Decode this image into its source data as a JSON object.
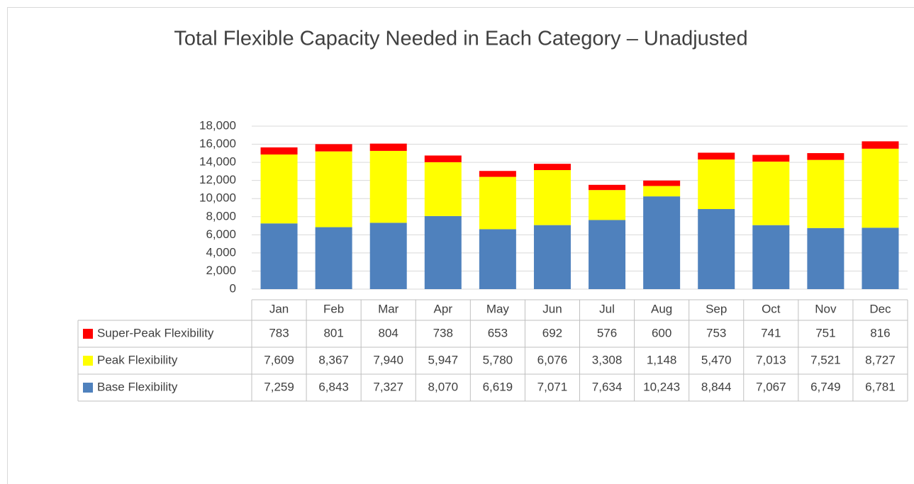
{
  "chart_data": {
    "type": "stacked_bar",
    "title": "Total Flexible Capacity Needed in Each Category – Unadjusted",
    "categories": [
      "Jan",
      "Feb",
      "Mar",
      "Apr",
      "May",
      "Jun",
      "Jul",
      "Aug",
      "Sep",
      "Oct",
      "Nov",
      "Dec"
    ],
    "series": [
      {
        "name": "Super-Peak Flexibility",
        "color": "#ff0000",
        "values": [
          783,
          801,
          804,
          738,
          653,
          692,
          576,
          600,
          753,
          741,
          751,
          816
        ],
        "value_labels": [
          "783",
          "801",
          "804",
          "738",
          "653",
          "692",
          "576",
          "600",
          "753",
          "741",
          "751",
          "816"
        ]
      },
      {
        "name": "Peak Flexibility",
        "color": "#ffff00",
        "values": [
          7609,
          8367,
          7940,
          5947,
          5780,
          6076,
          3308,
          1148,
          5470,
          7013,
          7521,
          8727
        ],
        "value_labels": [
          "7,609",
          "8,367",
          "7,940",
          "5,947",
          "5,780",
          "6,076",
          "3,308",
          "1,148",
          "5,470",
          "7,013",
          "7,521",
          "8,727"
        ]
      },
      {
        "name": "Base Flexibility",
        "color": "#4f81bd",
        "values": [
          7259,
          6843,
          7327,
          8070,
          6619,
          7071,
          7634,
          10243,
          8844,
          7067,
          6749,
          6781
        ],
        "value_labels": [
          "7,259",
          "6,843",
          "7,327",
          "8,070",
          "6,619",
          "7,071",
          "7,634",
          "10,243",
          "8,844",
          "7,067",
          "6,749",
          "6,781"
        ]
      }
    ],
    "ylim": [
      0,
      18000
    ],
    "yticks": [
      0,
      {
        "value": 2000,
        "label": "2,000"
      },
      {
        "value": 4000,
        "label": "4,000"
      },
      {
        "value": 6000,
        "label": "6,000"
      },
      {
        "value": 8000,
        "label": "8,000"
      },
      {
        "value": 10000,
        "label": "10,000"
      },
      {
        "value": 12000,
        "label": "12,000"
      },
      {
        "value": 14000,
        "label": "14,000"
      },
      {
        "value": 16000,
        "label": "16,000"
      },
      {
        "value": 18000,
        "label": "18,000"
      }
    ],
    "grid": true
  }
}
